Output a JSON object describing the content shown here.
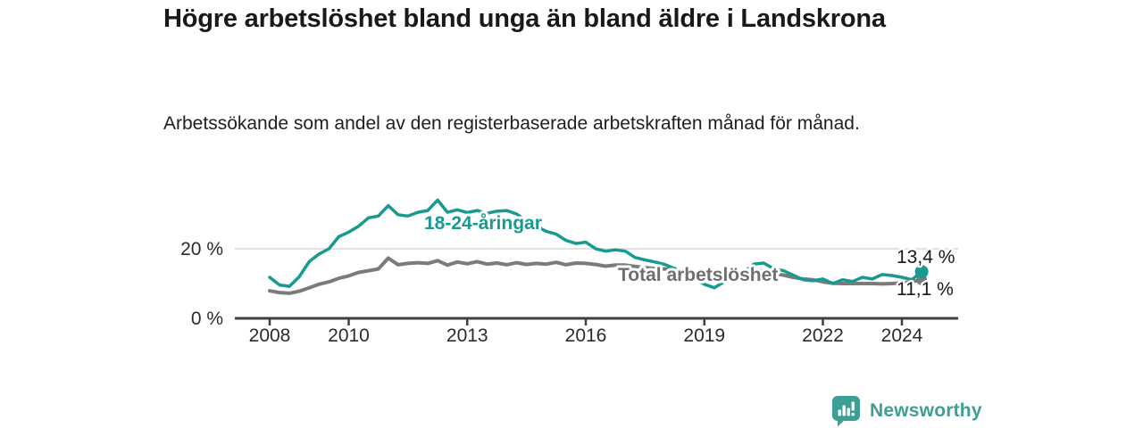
{
  "header": {
    "title": "Högre arbetslöshet bland unga än bland äldre i Landskrona",
    "subtitle": "Arbetssökande som andel av den registerbaserade arbetskraften månad för månad."
  },
  "chart_data": {
    "type": "line",
    "title": "Högre arbetslöshet bland unga än bland äldre i Landskrona",
    "xlabel": "",
    "ylabel": "Arbetssökande som andel av den registerbaserade arbetskraften (%)",
    "unit": "%",
    "ylim": [
      0,
      36
    ],
    "xlim": [
      2007.1,
      2025.4
    ],
    "grid": "horizontal-20-only",
    "gridlines": [
      20
    ],
    "legend_position": "inline-labels",
    "yticks": [
      {
        "value": 0,
        "label": "0 %"
      },
      {
        "value": 20,
        "label": "20 %"
      }
    ],
    "xticks": [
      {
        "value": 2008,
        "label": "2008"
      },
      {
        "value": 2010,
        "label": "2010"
      },
      {
        "value": 2013,
        "label": "2013"
      },
      {
        "value": 2016,
        "label": "2016"
      },
      {
        "value": 2019,
        "label": "2019"
      },
      {
        "value": 2022,
        "label": "2022"
      },
      {
        "value": 2024,
        "label": "2024"
      }
    ],
    "x_start": 2008.0,
    "x_step": 0.25,
    "series": [
      {
        "name": "18-24-åringar",
        "color": "#189a90",
        "end_label": "13,4 %",
        "end_value": 13.4,
        "values": [
          11.8,
          9.6,
          9.2,
          12.0,
          16.3,
          18.5,
          20.0,
          23.5,
          24.8,
          26.5,
          28.9,
          29.4,
          32.4,
          29.8,
          29.4,
          30.5,
          31.0,
          34.0,
          30.5,
          31.2,
          30.4,
          31.0,
          30.2,
          30.8,
          31.0,
          30.0,
          28.0,
          26.5,
          25.0,
          24.2,
          22.4,
          21.5,
          21.9,
          20.0,
          19.3,
          19.7,
          19.3,
          17.5,
          16.8,
          16.2,
          15.5,
          14.3,
          13.2,
          11.5,
          9.8,
          8.8,
          10.5,
          12.0,
          13.2,
          15.6,
          15.9,
          14.3,
          13.7,
          12.4,
          11.1,
          10.8,
          11.3,
          10.0,
          11.1,
          10.6,
          11.8,
          11.3,
          12.6,
          12.3,
          11.8,
          11.1,
          13.4
        ]
      },
      {
        "name": "Total arbetslöshet",
        "color": "#7b7b7b",
        "label_color": "#6f6f6f",
        "end_label": "11,1 %",
        "end_value": 11.1,
        "values": [
          7.9,
          7.4,
          7.2,
          7.8,
          8.8,
          9.8,
          10.5,
          11.5,
          12.2,
          13.2,
          13.7,
          14.2,
          17.3,
          15.4,
          15.8,
          16.0,
          15.8,
          16.6,
          15.3,
          16.2,
          15.7,
          16.3,
          15.6,
          15.9,
          15.4,
          16.0,
          15.5,
          15.8,
          15.6,
          16.1,
          15.4,
          15.9,
          15.8,
          15.5,
          15.0,
          15.3,
          15.3,
          14.9,
          14.6,
          14.3,
          14.2,
          13.9,
          13.6,
          13.3,
          13.2,
          12.9,
          12.8,
          13.0,
          13.4,
          13.8,
          13.6,
          13.0,
          12.4,
          11.8,
          11.3,
          11.1,
          10.5,
          10.1,
          10.0,
          10.0,
          10.0,
          10.0,
          9.9,
          10.0,
          10.2,
          10.5,
          11.1
        ]
      }
    ]
  },
  "colors": {
    "accent_teal": "#189a90",
    "line_gray": "#7b7b7b",
    "gridline": "#d9d9d9",
    "axis": "#404040",
    "text_dark": "#191919",
    "brand_teal": "#3d9e94"
  },
  "footer": {
    "brand": "Newsworthy",
    "logo_icon": "bar-chart-speech-bubble-icon"
  }
}
